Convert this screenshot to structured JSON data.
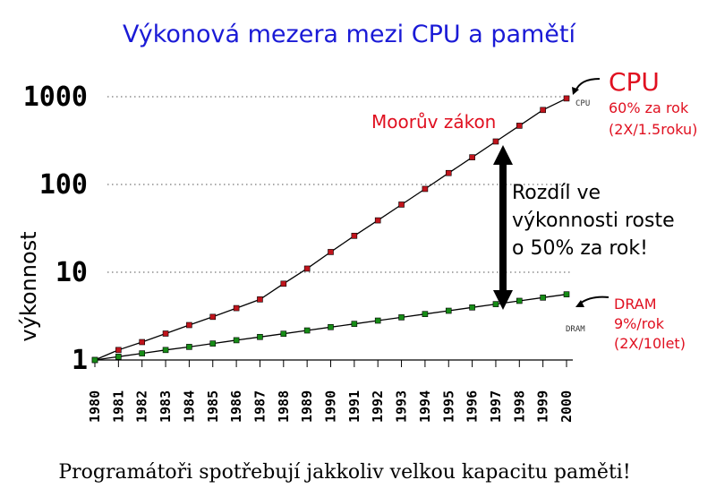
{
  "chart_data": {
    "type": "line",
    "title": "Výkonová mezera mezi CPU a pamětí",
    "ylabel": "výkonnost",
    "xlabel": "",
    "yscale": "log",
    "ylim": [
      1,
      1000
    ],
    "ytick_labels": [
      "1",
      "10",
      "100",
      "1000"
    ],
    "categories": [
      "1980",
      "1981",
      "1982",
      "1983",
      "1984",
      "1985",
      "1986",
      "1987",
      "1988",
      "1989",
      "1990",
      "1991",
      "1992",
      "1993",
      "1994",
      "1995",
      "1996",
      "1997",
      "1998",
      "1999",
      "2000"
    ],
    "grid": "dotted horizontal at 10, 100, 1000",
    "series": [
      {
        "name": "CPU",
        "color": "#c0141c",
        "x": [
          "1980",
          "1981",
          "1982",
          "1983",
          "1984",
          "1985",
          "1986",
          "1987",
          "1988",
          "1989",
          "1990",
          "1991",
          "1992",
          "1993",
          "1994",
          "1995",
          "1996",
          "1997",
          "1998",
          "1999",
          "2000"
        ],
        "values": [
          1,
          1.3,
          1.6,
          2.0,
          2.5,
          3.1,
          3.9,
          4.9,
          7.4,
          11,
          17,
          26,
          39,
          59,
          89,
          135,
          204,
          309,
          467,
          706,
          956
        ]
      },
      {
        "name": "DRAM",
        "color": "#168c16",
        "x": [
          "1980",
          "1981",
          "1982",
          "1983",
          "1984",
          "1985",
          "1986",
          "1987",
          "1988",
          "1989",
          "1990",
          "1991",
          "1992",
          "1993",
          "1994",
          "1995",
          "1996",
          "1997",
          "1998",
          "1999",
          "2000"
        ],
        "values": [
          1,
          1.09,
          1.19,
          1.3,
          1.41,
          1.54,
          1.68,
          1.83,
          1.99,
          2.17,
          2.37,
          2.58,
          2.81,
          3.06,
          3.34,
          3.64,
          3.97,
          4.33,
          4.72,
          5.14,
          5.6
        ]
      }
    ],
    "annotations": {
      "cpu_label": "CPU",
      "cpu_rate": "60% za rok",
      "cpu_double": "(2X/1.5roku)",
      "cpu_small": "CPU",
      "moore": "Moorův zákon",
      "gap_line1": "Rozdíl ve",
      "gap_line2": "výkonnosti roste",
      "gap_line3": "o 50% za rok!",
      "dram_label": "DRAM",
      "dram_rate": "9%/rok",
      "dram_double": "(2X/10let)",
      "dram_small": "DRAM"
    }
  },
  "footer": "Programátoři spotřebují jakkoliv velkou kapacitu paměti!"
}
